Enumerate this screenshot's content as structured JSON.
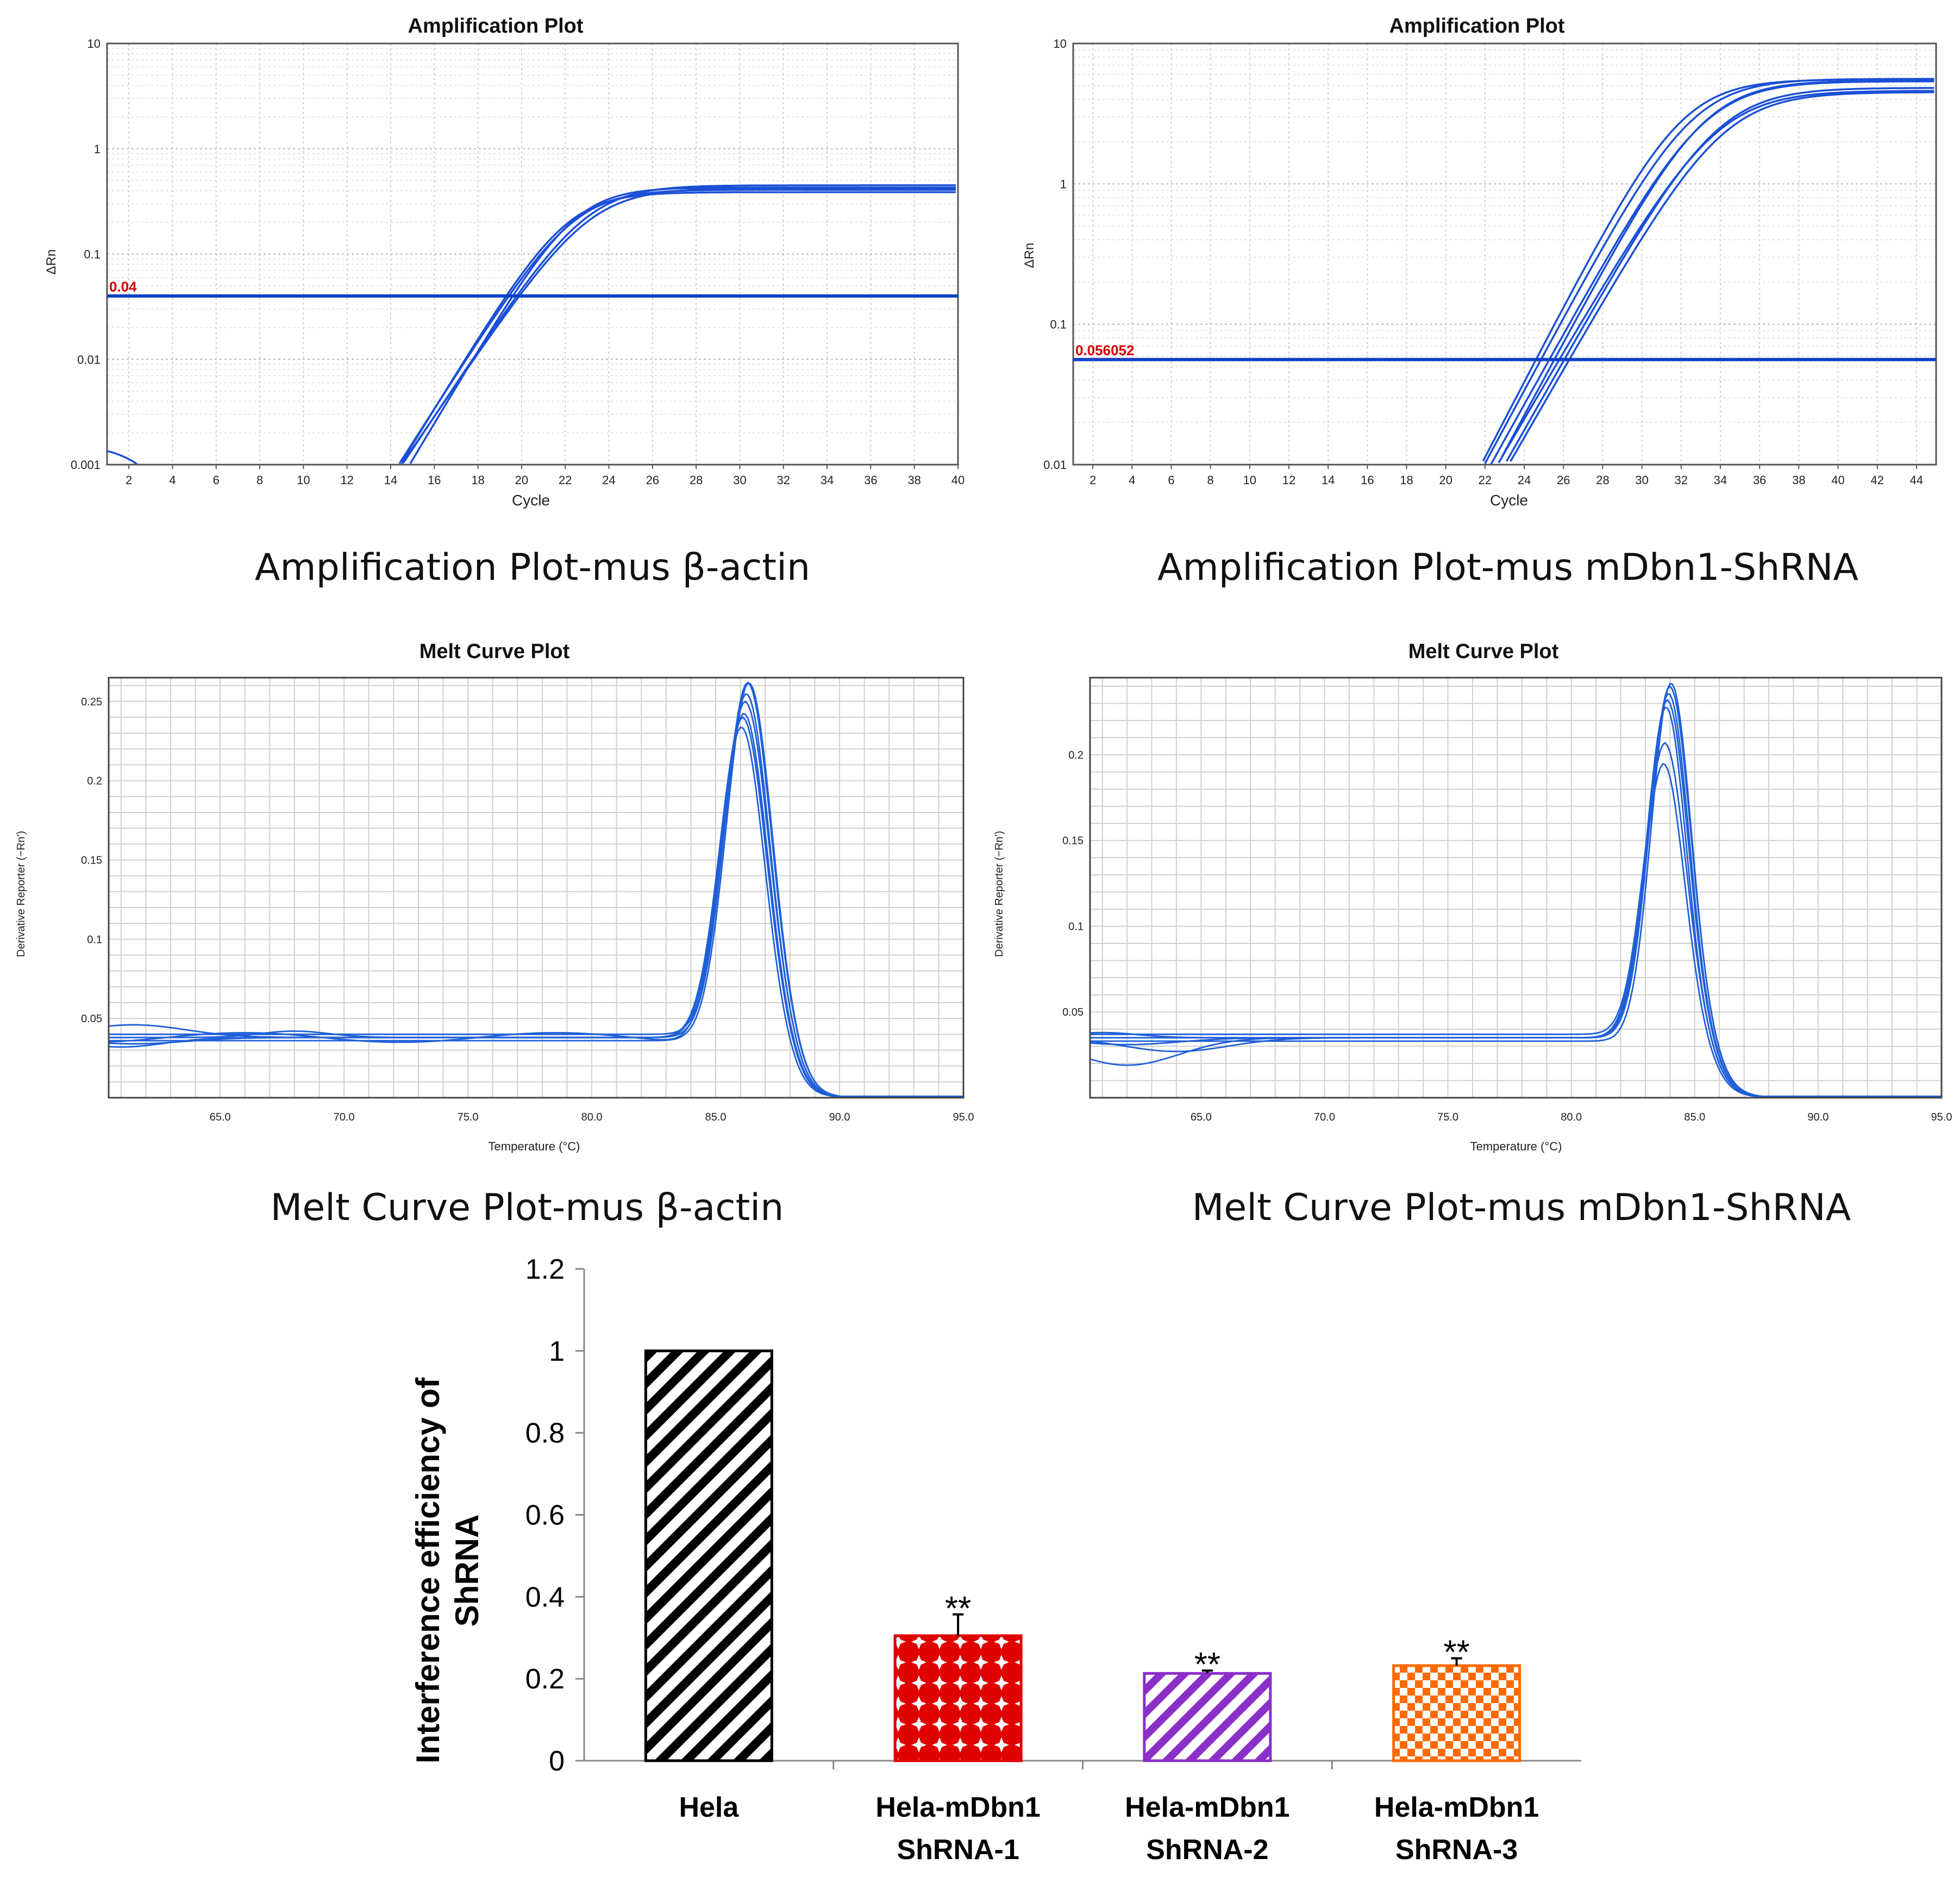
{
  "captions": {
    "amp_left": "Amplification Plot-mus β-actin",
    "amp_right": "Amplification Plot-mus mDbn1-ShRNA",
    "melt_left": "Melt Curve Plot-mus β-actin",
    "melt_right": "Melt Curve Plot-mus mDbn1-ShRNA"
  },
  "chart_data": [
    {
      "id": "amp1",
      "type": "line",
      "title": "Amplification Plot",
      "xlabel": "Cycle",
      "ylabel": "ΔRn",
      "yscale": "log",
      "xlim": [
        1,
        40
      ],
      "ylim": [
        0.001,
        10
      ],
      "xticks": [
        "2",
        "4",
        "6",
        "8",
        "10",
        "12",
        "14",
        "16",
        "18",
        "20",
        "22",
        "24",
        "26",
        "28",
        "30",
        "32",
        "34",
        "36",
        "38",
        "40"
      ],
      "yticks": [
        "0.001",
        "0.01",
        "0.1",
        "1",
        "10"
      ],
      "threshold": 0.04,
      "threshold_label": "0.04",
      "series_style": {
        "color": "#1a4fd6",
        "n_curves": 5,
        "ct_range": [
          19.3,
          19.9
        ],
        "plateau_range": [
          0.38,
          0.45
        ]
      }
    },
    {
      "id": "amp2",
      "type": "line",
      "title": "Amplification Plot",
      "xlabel": "Cycle",
      "ylabel": "ΔRn",
      "yscale": "log",
      "xlim": [
        1,
        45
      ],
      "ylim": [
        0.01,
        10
      ],
      "xticks": [
        "2",
        "4",
        "6",
        "8",
        "10",
        "12",
        "14",
        "16",
        "18",
        "20",
        "22",
        "24",
        "26",
        "28",
        "30",
        "32",
        "34",
        "36",
        "38",
        "40",
        "42",
        "44"
      ],
      "yticks": [
        "0.01",
        "0.1",
        "1",
        "10"
      ],
      "threshold": 0.056052,
      "threshold_label": "0.056052",
      "series_style": {
        "color": "#1a4fd6",
        "n_curves": 7,
        "ct_range": [
          24.6,
          26.3
        ],
        "plateau_range": [
          4.5,
          5.6
        ]
      }
    },
    {
      "id": "melt1",
      "type": "line",
      "title": "Melt Curve Plot",
      "xlabel": "Temperature (°C)",
      "ylabel": "Derivative Reporter (−Rn')",
      "xlim": [
        60.5,
        95
      ],
      "ylim": [
        0,
        0.265
      ],
      "xticks": [
        "65.0",
        "70.0",
        "75.0",
        "80.0",
        "85.0",
        "90.0",
        "95.0"
      ],
      "yticks": [
        "0.05",
        "0.1",
        "0.15",
        "0.2",
        "0.25"
      ],
      "peak_temp": 86.2,
      "peak_heights": [
        0.234,
        0.24,
        0.245,
        0.25,
        0.255,
        0.26,
        0.264
      ],
      "baseline": 0.038
    },
    {
      "id": "melt2",
      "type": "line",
      "title": "Melt Curve Plot",
      "xlabel": "Temperature (°C)",
      "ylabel": "Derivative Reporter (−Rn')",
      "xlim": [
        60.5,
        95
      ],
      "ylim": [
        0,
        0.245
      ],
      "xticks": [
        "65.0",
        "70.0",
        "75.0",
        "80.0",
        "85.0",
        "90.0",
        "95.0"
      ],
      "yticks": [
        "0.05",
        "0.1",
        "0.15",
        "0.2"
      ],
      "peak_temp": 83.9,
      "peak_heights": [
        0.195,
        0.205,
        0.228,
        0.232,
        0.236,
        0.24,
        0.244
      ],
      "baseline": 0.035
    },
    {
      "id": "bar",
      "type": "bar",
      "ylabel": "Interference efficiency of ShRNA",
      "ylim": [
        0,
        1.2
      ],
      "yticks": [
        "0",
        "0.2",
        "0.4",
        "0.6",
        "0.8",
        "1",
        "1.2"
      ],
      "categories": [
        [
          "Hela"
        ],
        [
          "Hela-mDbn1",
          "ShRNA-1"
        ],
        [
          "Hela-mDbn1",
          "ShRNA-2"
        ],
        [
          "Hela-mDbn1",
          "ShRNA-3"
        ]
      ],
      "values": [
        1.0,
        0.305,
        0.213,
        0.232
      ],
      "errors": [
        0,
        0.052,
        0.007,
        0.018
      ],
      "significance": [
        "",
        "**",
        "**",
        "**"
      ],
      "colors": [
        "#000000",
        "#e00000",
        "#8b2fc9",
        "#ff6a00"
      ],
      "patterns": [
        "diagonal-stripes",
        "stars",
        "diagonal-stripes",
        "checker"
      ]
    }
  ]
}
